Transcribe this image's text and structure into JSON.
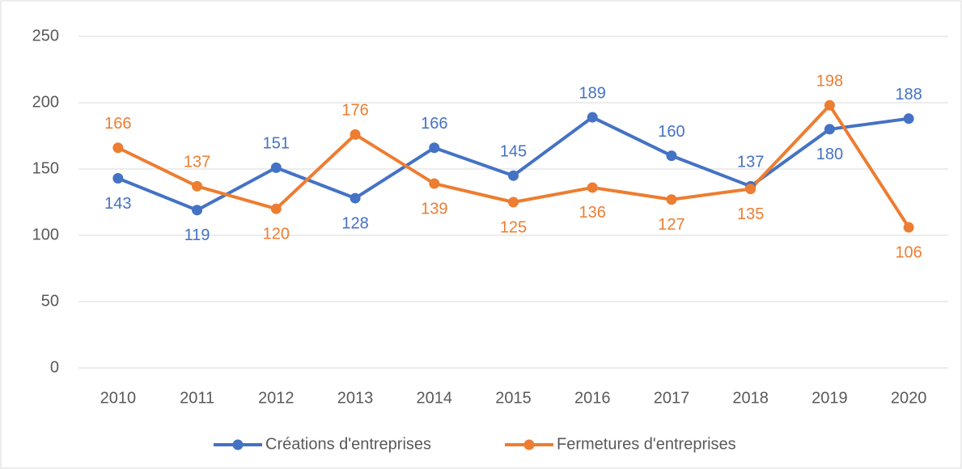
{
  "chart_data": {
    "type": "line",
    "categories": [
      "2010",
      "2011",
      "2012",
      "2013",
      "2014",
      "2015",
      "2016",
      "2017",
      "2018",
      "2019",
      "2020"
    ],
    "series": [
      {
        "name": "Créations d'entreprises",
        "color": "#4472c4",
        "values": [
          143,
          119,
          151,
          128,
          166,
          145,
          189,
          160,
          137,
          180,
          188
        ]
      },
      {
        "name": "Fermetures d'entreprises",
        "color": "#ed7d31",
        "values": [
          166,
          137,
          120,
          176,
          139,
          125,
          136,
          127,
          135,
          198,
          106
        ]
      }
    ],
    "ylim": [
      0,
      250
    ],
    "yticks": [
      0,
      50,
      100,
      150,
      200,
      250
    ],
    "grid": true,
    "legend": "bottom"
  }
}
